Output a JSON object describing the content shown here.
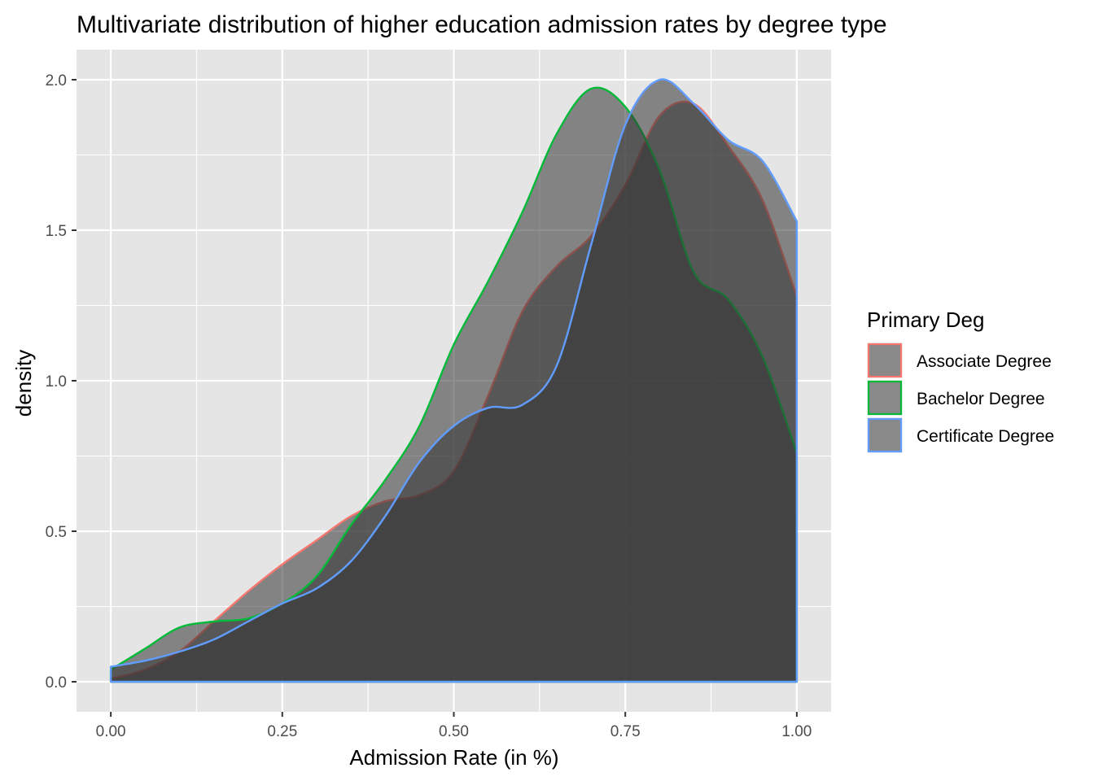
{
  "chart_data": {
    "type": "area",
    "title": "Multivariate distribution of higher education admission rates by degree type",
    "xlabel": "Admission Rate (in %)",
    "ylabel": "density",
    "xlim": [
      -0.05,
      1.05
    ],
    "ylim": [
      -0.1,
      2.1
    ],
    "x_ticks": [
      0,
      0.25,
      0.5,
      0.75,
      1
    ],
    "x_tick_labels": [
      "0.00",
      "0.25",
      "0.50",
      "0.75",
      "1.00"
    ],
    "y_ticks": [
      0,
      0.5,
      1,
      1.5,
      2
    ],
    "y_tick_labels": [
      "0.0",
      "0.5",
      "1.0",
      "1.5",
      "2.0"
    ],
    "grid": true,
    "background": "#e5e5e5",
    "fill_color": "#333333",
    "fill_opacity": 0.55,
    "legend": {
      "title": "Primary Deg",
      "position": "right"
    },
    "series": [
      {
        "name": "Associate Degree",
        "color": "#f8766d",
        "x": [
          0,
          0.05,
          0.1,
          0.15,
          0.2,
          0.25,
          0.3,
          0.35,
          0.4,
          0.45,
          0.5,
          0.55,
          0.6,
          0.65,
          0.7,
          0.75,
          0.8,
          0.85,
          0.9,
          0.95,
          1.0
        ],
        "y": [
          0.01,
          0.04,
          0.1,
          0.2,
          0.3,
          0.39,
          0.47,
          0.55,
          0.6,
          0.62,
          0.7,
          0.95,
          1.23,
          1.38,
          1.48,
          1.65,
          1.88,
          1.92,
          1.78,
          1.6,
          1.28
        ]
      },
      {
        "name": "Bachelor Degree",
        "color": "#00ba38",
        "x": [
          0,
          0.05,
          0.1,
          0.15,
          0.2,
          0.25,
          0.3,
          0.35,
          0.4,
          0.45,
          0.5,
          0.55,
          0.6,
          0.65,
          0.7,
          0.75,
          0.8,
          0.85,
          0.9,
          0.95,
          1.0
        ],
        "y": [
          0.04,
          0.11,
          0.18,
          0.2,
          0.21,
          0.26,
          0.35,
          0.52,
          0.67,
          0.85,
          1.12,
          1.33,
          1.56,
          1.82,
          1.97,
          1.91,
          1.7,
          1.36,
          1.27,
          1.08,
          0.76
        ]
      },
      {
        "name": "Certificate Degree",
        "color": "#619cff",
        "x": [
          0,
          0.05,
          0.1,
          0.15,
          0.2,
          0.25,
          0.3,
          0.35,
          0.4,
          0.45,
          0.5,
          0.55,
          0.6,
          0.65,
          0.7,
          0.75,
          0.8,
          0.85,
          0.9,
          0.95,
          1.0
        ],
        "y": [
          0.05,
          0.07,
          0.1,
          0.14,
          0.2,
          0.26,
          0.31,
          0.4,
          0.55,
          0.73,
          0.85,
          0.91,
          0.92,
          1.05,
          1.45,
          1.85,
          2.0,
          1.92,
          1.8,
          1.73,
          1.53
        ]
      }
    ]
  }
}
